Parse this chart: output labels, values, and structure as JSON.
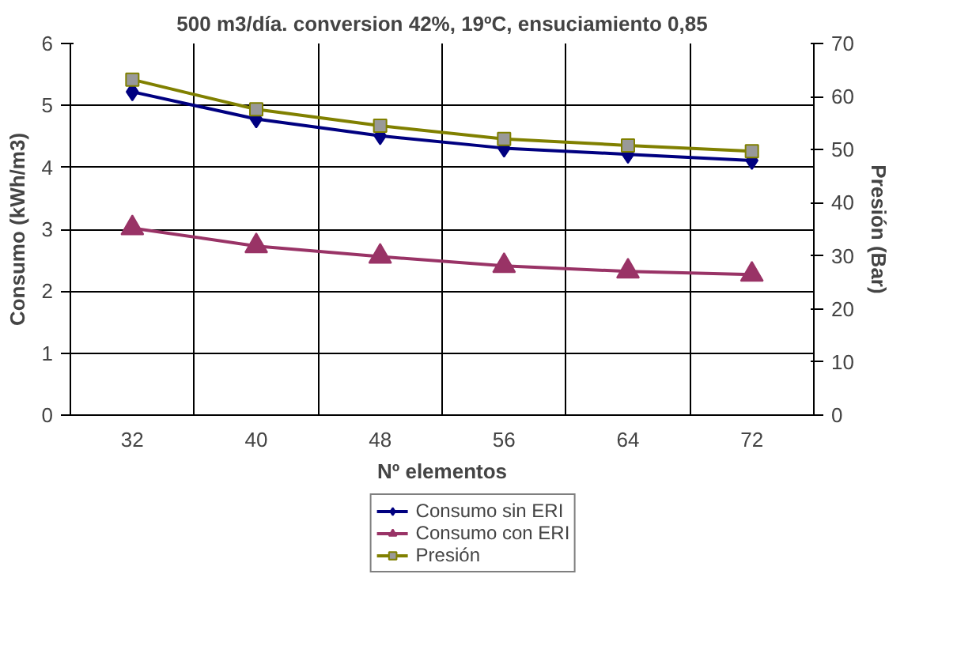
{
  "chart_data": {
    "type": "line",
    "title": "500 m3/día. conversion 42%, 19ºC, ensuciamiento 0,85",
    "xlabel": "Nº elementos",
    "ylabel": "Consumo (kWh/m3)",
    "y2label": "Presión (Bar)",
    "categories": [
      "32",
      "40",
      "48",
      "56",
      "64",
      "72"
    ],
    "series": [
      {
        "name": "Consumo sin ERI",
        "color": "#000080",
        "marker": "diamond",
        "values": [
          5.22,
          4.78,
          4.51,
          4.31,
          4.21,
          4.11
        ]
      },
      {
        "name": "Consumo con ERI",
        "color": "#993366",
        "marker": "triangle",
        "values": [
          3.02,
          2.73,
          2.56,
          2.41,
          2.32,
          2.27
        ]
      },
      {
        "name": "Presión",
        "color": "#808000",
        "marker": "square",
        "axis": "y2",
        "values": [
          63.2,
          57.6,
          54.5,
          52.0,
          50.8,
          49.7
        ]
      }
    ],
    "ylim": [
      0,
      6
    ],
    "yticks": [
      0,
      1,
      2,
      3,
      4,
      5,
      6
    ],
    "y2lim": [
      0,
      70
    ],
    "y2ticks": [
      0,
      10,
      20,
      30,
      40,
      50,
      60,
      70
    ],
    "grid": true,
    "legend": "bottom",
    "line_style": "solid"
  }
}
